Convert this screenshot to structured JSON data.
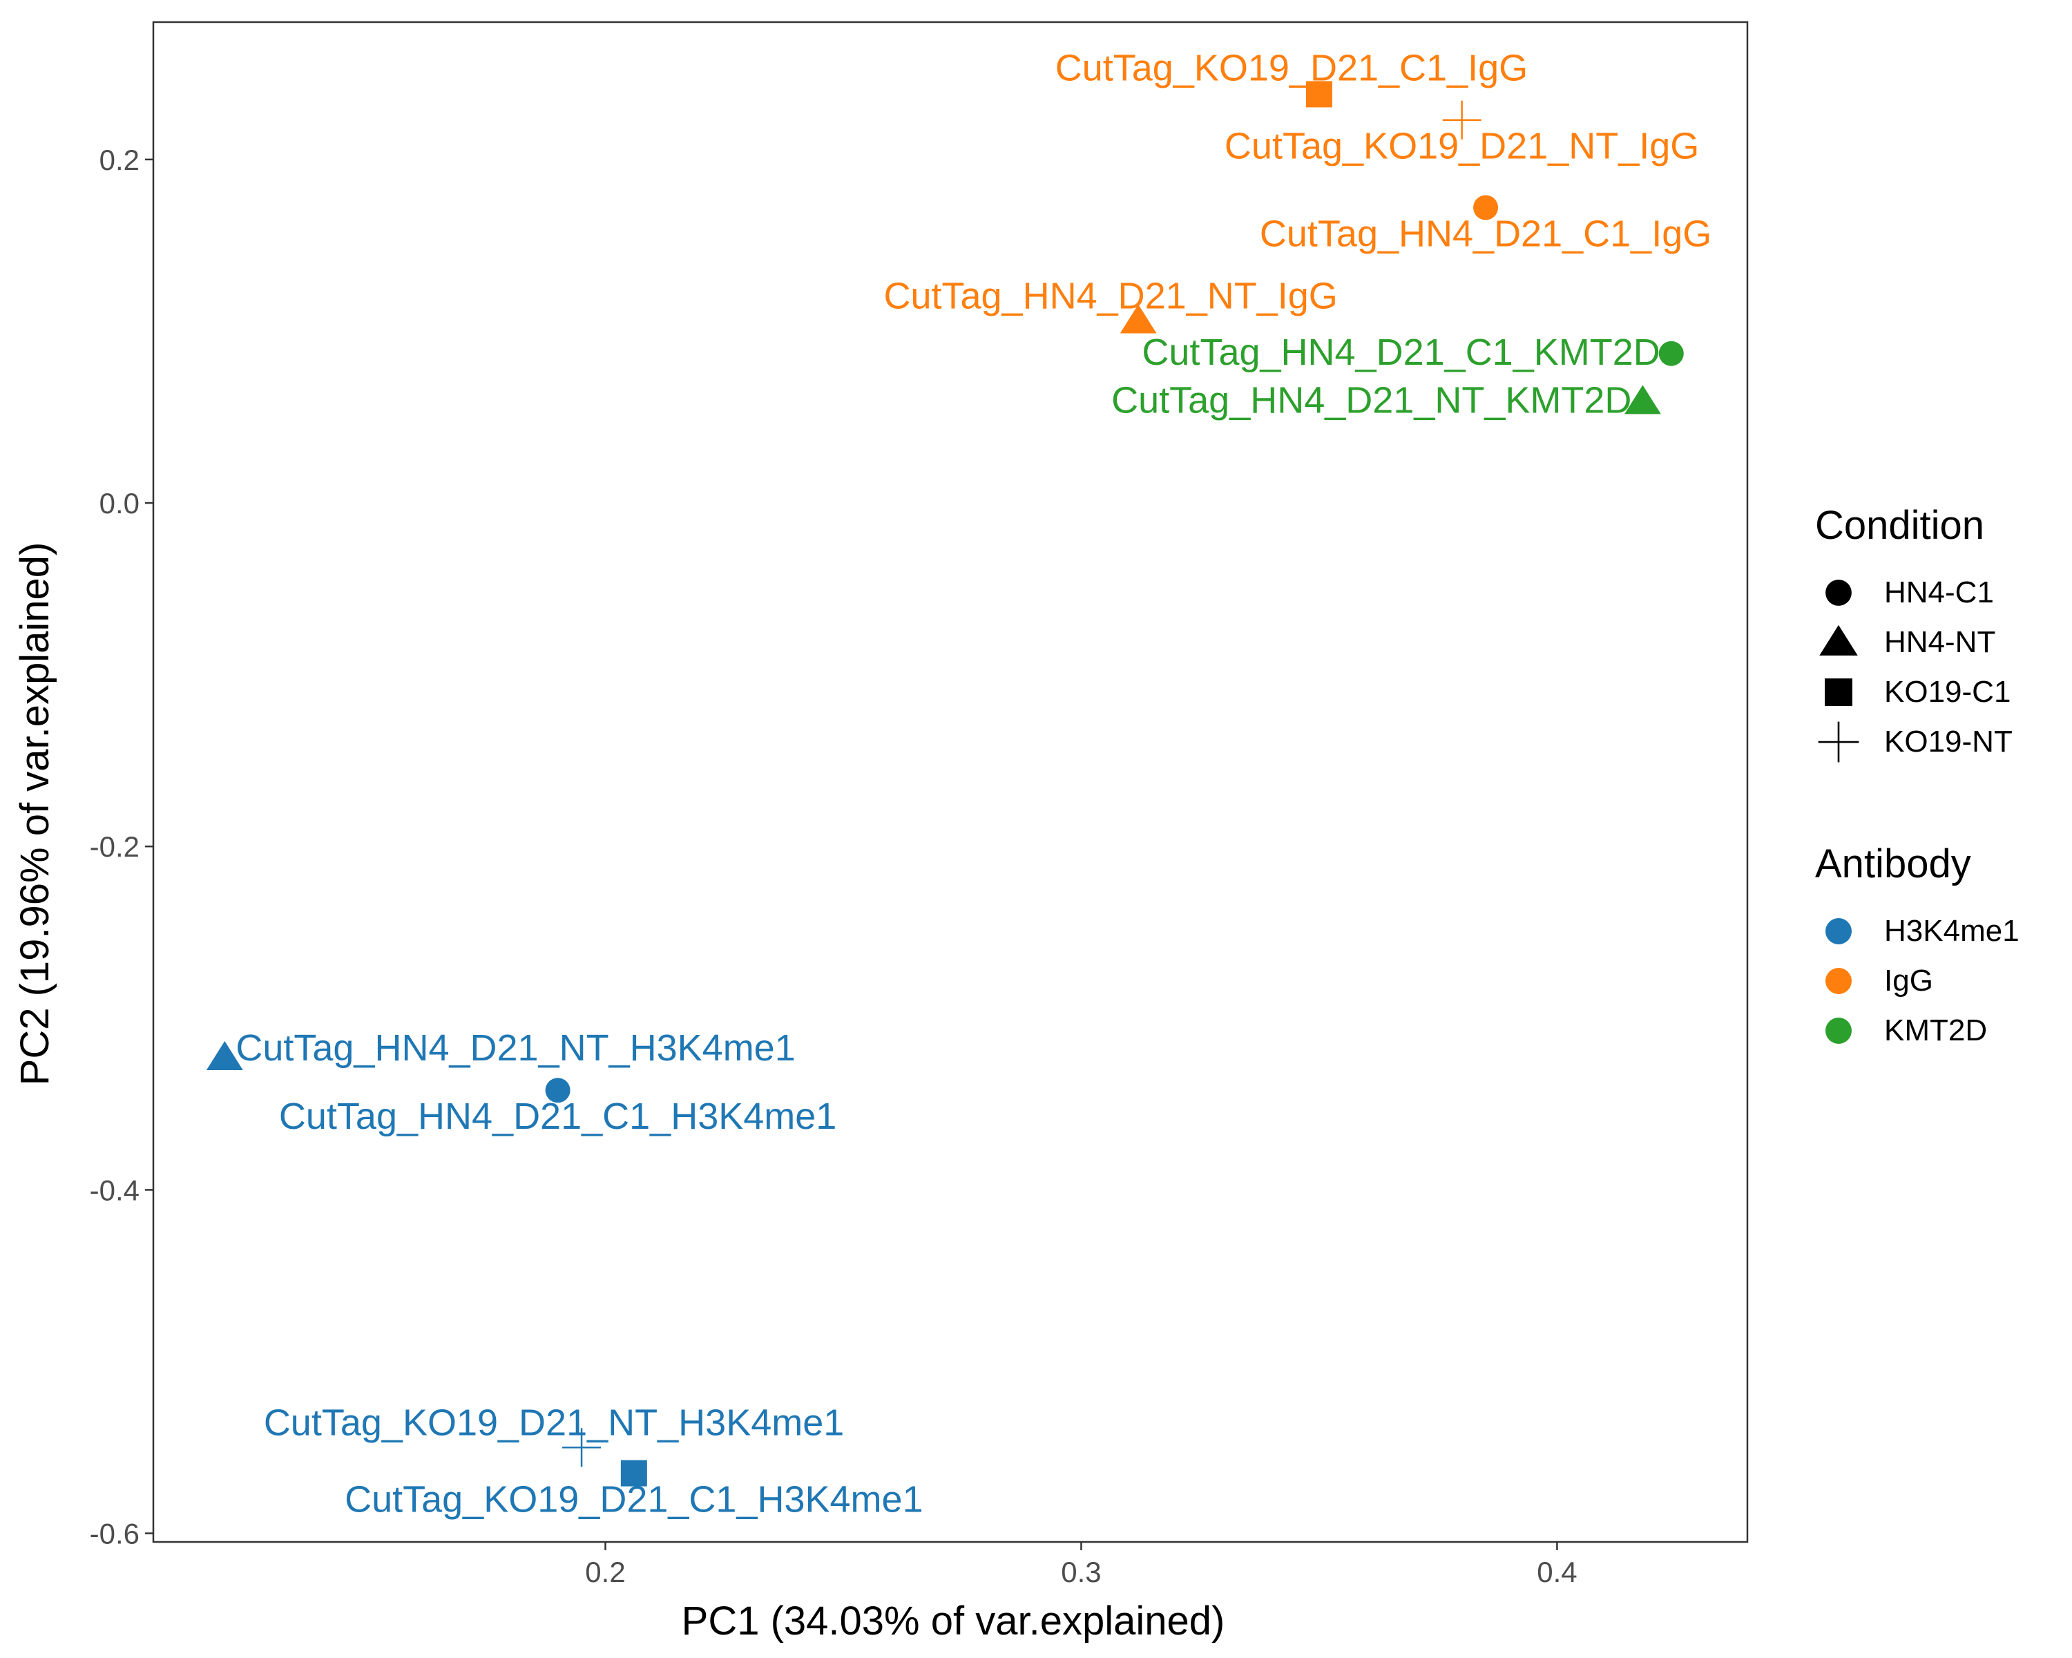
{
  "chart_data": {
    "type": "scatter",
    "title": "",
    "xlabel": "PC1 (34.03% of var.explained)",
    "ylabel": "PC2 (19.96% of var.explained)",
    "xlim": [
      0.105,
      0.44
    ],
    "ylim": [
      -0.605,
      0.28
    ],
    "xticks": [
      0.2,
      0.3,
      0.4
    ],
    "xtick_labels": [
      "0.2",
      "0.3",
      "0.4"
    ],
    "yticks": [
      0.2,
      0.0,
      -0.2,
      -0.4,
      -0.6
    ],
    "ytick_labels": [
      "0.2",
      "0.0",
      "-0.2",
      "-0.4",
      "-0.6"
    ],
    "grid": false,
    "legend_position": "right",
    "legends": [
      {
        "title": "Condition",
        "kind": "shape",
        "entries": [
          {
            "label": "HN4-C1",
            "shape": "circle"
          },
          {
            "label": "HN4-NT",
            "shape": "triangle"
          },
          {
            "label": "KO19-C1",
            "shape": "square"
          },
          {
            "label": "KO19-NT",
            "shape": "plus"
          }
        ]
      },
      {
        "title": "Antibody",
        "kind": "color",
        "entries": [
          {
            "label": "H3K4me1",
            "color": "#1f77b4"
          },
          {
            "label": "IgG",
            "color": "#ff7f0e"
          },
          {
            "label": "KMT2D",
            "color": "#2ca02c"
          }
        ]
      }
    ],
    "points": [
      {
        "label": "CutTag_KO19_D21_C1_IgG",
        "x": 0.35,
        "y": 0.238,
        "condition": "KO19-C1",
        "antibody": "IgG",
        "label_pos": "above-left"
      },
      {
        "label": "CutTag_KO19_D21_NT_IgG",
        "x": 0.38,
        "y": 0.223,
        "condition": "KO19-NT",
        "antibody": "IgG",
        "label_pos": "below"
      },
      {
        "label": "CutTag_HN4_D21_C1_IgG",
        "x": 0.385,
        "y": 0.172,
        "condition": "HN4-C1",
        "antibody": "IgG",
        "label_pos": "below"
      },
      {
        "label": "CutTag_HN4_D21_NT_IgG",
        "x": 0.312,
        "y": 0.106,
        "condition": "HN4-NT",
        "antibody": "IgG",
        "label_pos": "above"
      },
      {
        "label": "CutTag_HN4_D21_C1_KMT2D",
        "x": 0.424,
        "y": 0.087,
        "condition": "HN4-C1",
        "antibody": "KMT2D",
        "label_pos": "left"
      },
      {
        "label": "CutTag_HN4_D21_NT_KMT2D",
        "x": 0.418,
        "y": 0.059,
        "condition": "HN4-NT",
        "antibody": "KMT2D",
        "label_pos": "left"
      },
      {
        "label": "CutTag_HN4_D21_NT_H3K4me1",
        "x": 0.12,
        "y": -0.323,
        "condition": "HN4-NT",
        "antibody": "H3K4me1",
        "label_pos": "right"
      },
      {
        "label": "CutTag_HN4_D21_C1_H3K4me1",
        "x": 0.19,
        "y": -0.342,
        "condition": "HN4-C1",
        "antibody": "H3K4me1",
        "label_pos": "below"
      },
      {
        "label": "CutTag_KO19_D21_NT_H3K4me1",
        "x": 0.195,
        "y": -0.55,
        "condition": "KO19-NT",
        "antibody": "H3K4me1",
        "label_pos": "above"
      },
      {
        "label": "CutTag_KO19_D21_C1_H3K4me1",
        "x": 0.206,
        "y": -0.565,
        "condition": "KO19-C1",
        "antibody": "H3K4me1",
        "label_pos": "below"
      }
    ]
  }
}
